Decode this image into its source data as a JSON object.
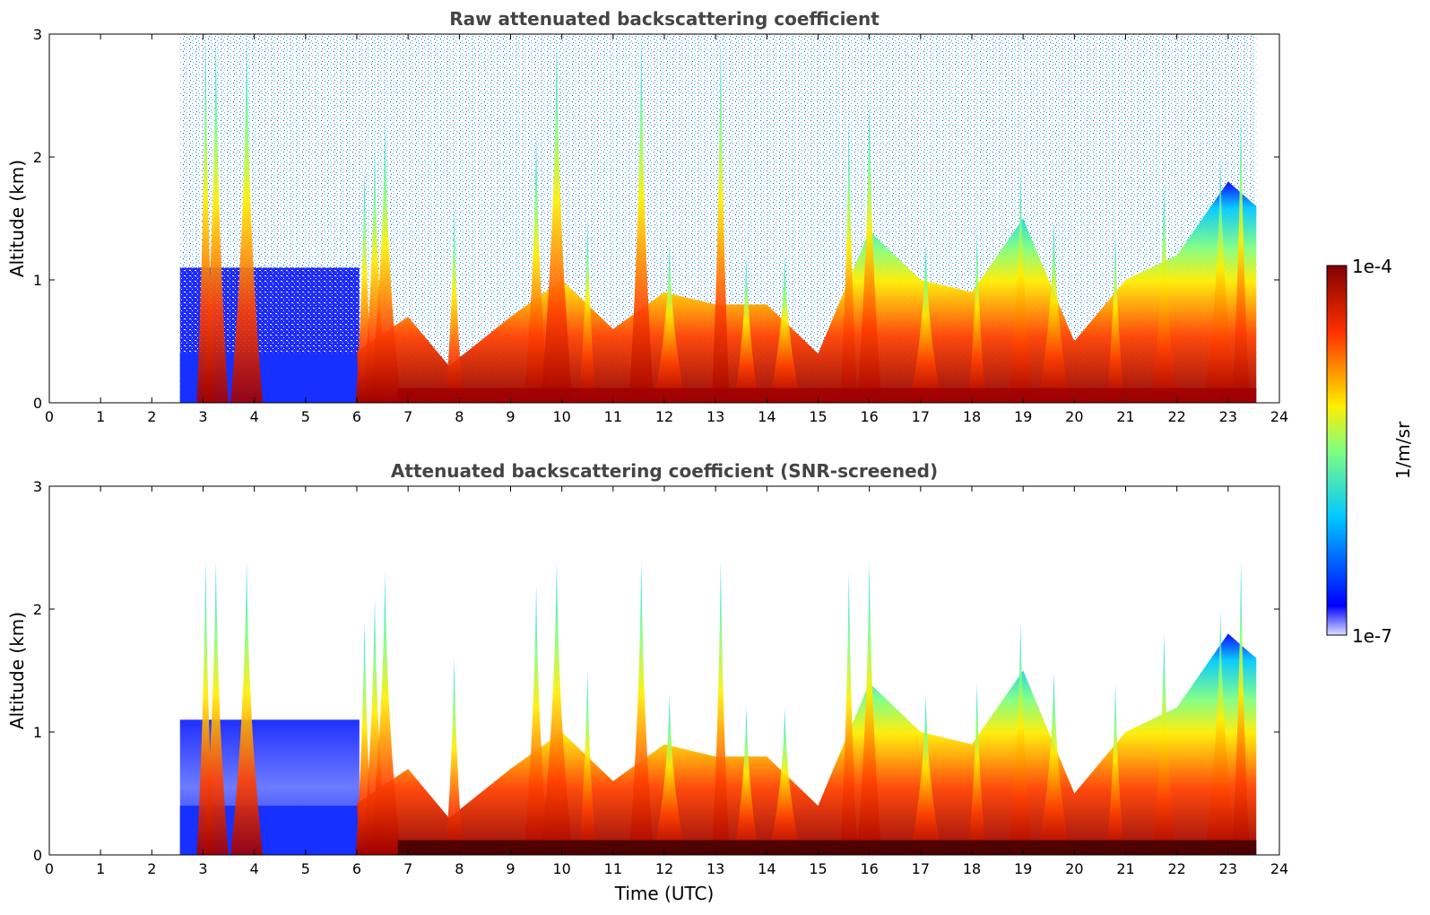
{
  "chart_data": [
    {
      "type": "heatmap",
      "title": "Raw attenuated backscattering coefficient",
      "xlabel": "",
      "ylabel": "Altitude (km)",
      "xlim": [
        0,
        24
      ],
      "ylim": [
        0,
        3
      ],
      "xticks": [
        "0",
        "1",
        "2",
        "3",
        "4",
        "5",
        "6",
        "7",
        "8",
        "9",
        "10",
        "11",
        "12",
        "13",
        "14",
        "15",
        "16",
        "17",
        "18",
        "19",
        "20",
        "21",
        "22",
        "23",
        "24"
      ],
      "yticks": [
        "0",
        "1",
        "2",
        "3"
      ],
      "data_start_hour": 2.55,
      "data_end_hour": 23.55,
      "screened": false,
      "boundary_layer_top_km": [
        {
          "x": 2.55,
          "y": 0.35
        },
        {
          "x": 6.0,
          "y": 0.42
        },
        {
          "x": 7.0,
          "y": 0.7
        },
        {
          "x": 7.8,
          "y": 0.3
        },
        {
          "x": 9.0,
          "y": 0.7
        },
        {
          "x": 10.0,
          "y": 1.0
        },
        {
          "x": 11.0,
          "y": 0.6
        },
        {
          "x": 12.0,
          "y": 0.9
        },
        {
          "x": 13.0,
          "y": 0.8
        },
        {
          "x": 14.0,
          "y": 0.8
        },
        {
          "x": 15.0,
          "y": 0.4
        },
        {
          "x": 16.0,
          "y": 1.4
        },
        {
          "x": 17.0,
          "y": 1.0
        },
        {
          "x": 18.0,
          "y": 0.9
        },
        {
          "x": 19.0,
          "y": 1.5
        },
        {
          "x": 20.0,
          "y": 0.5
        },
        {
          "x": 21.0,
          "y": 1.0
        },
        {
          "x": 22.0,
          "y": 1.2
        },
        {
          "x": 23.0,
          "y": 1.8
        },
        {
          "x": 23.55,
          "y": 1.6
        }
      ],
      "plumes": [
        {
          "x": 3.05,
          "top": 3.0
        },
        {
          "x": 3.25,
          "top": 3.0
        },
        {
          "x": 3.85,
          "top": 3.0
        },
        {
          "x": 6.15,
          "top": 1.9
        },
        {
          "x": 6.35,
          "top": 2.1
        },
        {
          "x": 6.55,
          "top": 2.3
        },
        {
          "x": 7.9,
          "top": 1.6
        },
        {
          "x": 9.5,
          "top": 2.2
        },
        {
          "x": 9.9,
          "top": 3.0
        },
        {
          "x": 10.5,
          "top": 1.5
        },
        {
          "x": 11.55,
          "top": 3.0
        },
        {
          "x": 12.1,
          "top": 1.3
        },
        {
          "x": 13.1,
          "top": 3.0
        },
        {
          "x": 13.6,
          "top": 1.2
        },
        {
          "x": 14.35,
          "top": 1.2
        },
        {
          "x": 15.6,
          "top": 2.3
        },
        {
          "x": 16.0,
          "top": 2.5
        },
        {
          "x": 17.1,
          "top": 1.3
        },
        {
          "x": 18.1,
          "top": 1.4
        },
        {
          "x": 18.95,
          "top": 1.9
        },
        {
          "x": 19.6,
          "top": 1.5
        },
        {
          "x": 20.8,
          "top": 1.4
        },
        {
          "x": 21.75,
          "top": 1.8
        },
        {
          "x": 22.85,
          "top": 2.0
        },
        {
          "x": 23.25,
          "top": 2.4
        }
      ]
    },
    {
      "type": "heatmap",
      "title": "Attenuated backscattering coefficient (SNR-screened)",
      "xlabel": "Time (UTC)",
      "ylabel": "Altitude (km)",
      "xlim": [
        0,
        24
      ],
      "ylim": [
        0,
        3
      ],
      "xticks": [
        "0",
        "1",
        "2",
        "3",
        "4",
        "5",
        "6",
        "7",
        "8",
        "9",
        "10",
        "11",
        "12",
        "13",
        "14",
        "15",
        "16",
        "17",
        "18",
        "19",
        "20",
        "21",
        "22",
        "23",
        "24"
      ],
      "yticks": [
        "0",
        "1",
        "2",
        "3"
      ],
      "data_start_hour": 2.55,
      "data_end_hour": 23.55,
      "screened": true
    }
  ],
  "colorbar": {
    "label": "1/m/sr",
    "min_label": "1e-7",
    "max_label": "1e-4",
    "colormap": "jet"
  }
}
